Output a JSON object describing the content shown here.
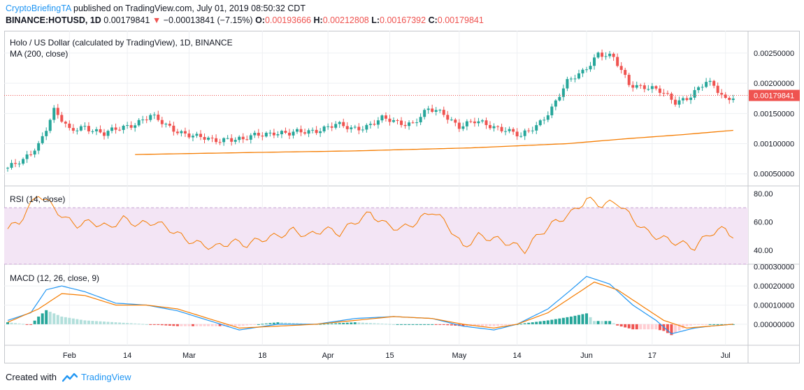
{
  "header": {
    "author": "CryptoBriefingTA",
    "published_text": "published on TradingView.com, July 01, 2019 08:50:32 CDT",
    "symbol": "BINANCE:HOTUSD, 1D",
    "last": "0.00179841",
    "change_arrow": "▼",
    "change": "−0.00013841 (−7.15%)",
    "o_label": "O:",
    "o_value": "0.00193666",
    "h_label": "H:",
    "h_value": "0.00212808",
    "l_label": "L:",
    "l_value": "0.00167392",
    "c_label": "C:",
    "c_value": "0.00179841"
  },
  "panes": {
    "price_title": "Holo / US Dollar (calculated by TradingView), 1D, BINANCE",
    "ma_label": "MA (200, close)",
    "rsi_label": "RSI (14, close)",
    "macd_label": "MACD (12, 26, close, 9)"
  },
  "footer": {
    "created_with": "Created with",
    "brand": "TradingView"
  },
  "colors": {
    "up": "#26a69a",
    "down": "#ef5350",
    "ma": "#f57c00",
    "rsi": "#f57c00",
    "macd": "#2196f3",
    "signal": "#f57c00",
    "rsi_band": "#f3e5f5",
    "last_price_tag": "#ef5350"
  },
  "chart_data": [
    {
      "type": "candlestick",
      "title": "Holo / US Dollar (calculated by TradingView), 1D, BINANCE",
      "x_ticks": [
        "Feb",
        "14",
        "Mar",
        "18",
        "Apr",
        "15",
        "May",
        "14",
        "Jun",
        "17",
        "Jul"
      ],
      "y_ticks": [
        "0.00050000",
        "0.00100000",
        "0.00150000",
        "0.00200000",
        "0.00250000"
      ],
      "ylim": [
        0.0003,
        0.0028
      ],
      "last_price": "0.00179841",
      "price_anchors": [
        [
          0,
          0.0006
        ],
        [
          4,
          0.0007
        ],
        [
          8,
          0.001
        ],
        [
          12,
          0.00155
        ],
        [
          16,
          0.0012
        ],
        [
          20,
          0.0013
        ],
        [
          25,
          0.00115
        ],
        [
          29,
          0.00125
        ],
        [
          33,
          0.00135
        ],
        [
          37,
          0.00145
        ],
        [
          41,
          0.0013
        ],
        [
          45,
          0.0012
        ],
        [
          49,
          0.0011
        ],
        [
          53,
          0.00105
        ],
        [
          57,
          0.0011
        ],
        [
          61,
          0.00105
        ],
        [
          65,
          0.00115
        ],
        [
          69,
          0.0012
        ],
        [
          73,
          0.00115
        ],
        [
          77,
          0.0012
        ],
        [
          81,
          0.00125
        ],
        [
          85,
          0.0013
        ],
        [
          89,
          0.00125
        ],
        [
          93,
          0.0013
        ],
        [
          97,
          0.0014
        ],
        [
          101,
          0.00135
        ],
        [
          105,
          0.00135
        ],
        [
          109,
          0.00155
        ],
        [
          113,
          0.0015
        ],
        [
          117,
          0.0013
        ],
        [
          121,
          0.00135
        ],
        [
          125,
          0.0013
        ],
        [
          129,
          0.00125
        ],
        [
          133,
          0.0011
        ],
        [
          137,
          0.0013
        ],
        [
          141,
          0.0016
        ],
        [
          145,
          0.002
        ],
        [
          149,
          0.0022
        ],
        [
          153,
          0.0025
        ],
        [
          157,
          0.0024
        ],
        [
          161,
          0.002
        ],
        [
          165,
          0.00195
        ],
        [
          169,
          0.00185
        ],
        [
          173,
          0.0017
        ],
        [
          177,
          0.0018
        ],
        [
          181,
          0.002
        ],
        [
          183,
          0.00195
        ],
        [
          186,
          0.00175
        ],
        [
          188,
          0.0018
        ]
      ],
      "ma": {
        "name": "MA (200, close)",
        "points": [
          [
            33,
            0.00082
          ],
          [
            60,
            0.00085
          ],
          [
            90,
            0.00088
          ],
          [
            120,
            0.00093
          ],
          [
            145,
            0.001
          ],
          [
            160,
            0.00108
          ],
          [
            175,
            0.00115
          ],
          [
            188,
            0.00122
          ]
        ]
      }
    },
    {
      "type": "line",
      "title": "RSI (14, close)",
      "y_ticks": [
        "40.00",
        "60.00",
        "80.00"
      ],
      "ylim": [
        30,
        85
      ],
      "band": [
        30,
        70
      ],
      "points": [
        [
          0,
          55
        ],
        [
          3,
          60
        ],
        [
          6,
          72
        ],
        [
          8,
          80
        ],
        [
          10,
          75
        ],
        [
          12,
          70
        ],
        [
          15,
          62
        ],
        [
          18,
          58
        ],
        [
          22,
          60
        ],
        [
          26,
          56
        ],
        [
          30,
          62
        ],
        [
          34,
          58
        ],
        [
          38,
          60
        ],
        [
          42,
          55
        ],
        [
          46,
          48
        ],
        [
          50,
          44
        ],
        [
          54,
          42
        ],
        [
          58,
          46
        ],
        [
          62,
          44
        ],
        [
          66,
          48
        ],
        [
          70,
          50
        ],
        [
          74,
          54
        ],
        [
          78,
          50
        ],
        [
          82,
          55
        ],
        [
          86,
          52
        ],
        [
          90,
          60
        ],
        [
          94,
          66
        ],
        [
          98,
          58
        ],
        [
          102,
          55
        ],
        [
          106,
          60
        ],
        [
          110,
          68
        ],
        [
          114,
          58
        ],
        [
          118,
          42
        ],
        [
          122,
          50
        ],
        [
          126,
          48
        ],
        [
          130,
          45
        ],
        [
          134,
          40
        ],
        [
          138,
          52
        ],
        [
          142,
          60
        ],
        [
          146,
          66
        ],
        [
          150,
          76
        ],
        [
          154,
          72
        ],
        [
          158,
          74
        ],
        [
          162,
          62
        ],
        [
          166,
          52
        ],
        [
          170,
          48
        ],
        [
          174,
          45
        ],
        [
          178,
          42
        ],
        [
          182,
          52
        ],
        [
          186,
          55
        ],
        [
          188,
          50
        ]
      ]
    },
    {
      "type": "line",
      "title": "MACD (12, 26, close, 9)",
      "y_ticks": [
        "0.00000000",
        "0.00010000",
        "0.00020000",
        "0.00030000"
      ],
      "ylim": [
        -0.00011,
        0.00031
      ],
      "series": [
        {
          "name": "MACD",
          "points": [
            [
              0,
              2e-05
            ],
            [
              6,
              6e-05
            ],
            [
              10,
              0.00018
            ],
            [
              14,
              0.0002
            ],
            [
              20,
              0.00017
            ],
            [
              28,
              0.00011
            ],
            [
              36,
              0.0001
            ],
            [
              44,
              7e-05
            ],
            [
              52,
              2e-05
            ],
            [
              60,
              -3e-05
            ],
            [
              70,
              0.0
            ],
            [
              80,
              0.0
            ],
            [
              90,
              3e-05
            ],
            [
              100,
              4e-05
            ],
            [
              110,
              3e-05
            ],
            [
              118,
              -1e-05
            ],
            [
              126,
              -3e-05
            ],
            [
              132,
              0.0
            ],
            [
              140,
              8e-05
            ],
            [
              146,
              0.00018
            ],
            [
              150,
              0.00025
            ],
            [
              156,
              0.00021
            ],
            [
              162,
              0.0001
            ],
            [
              168,
              2e-05
            ],
            [
              172,
              -5e-05
            ],
            [
              178,
              -2e-05
            ],
            [
              182,
              -1e-05
            ],
            [
              188,
              0.0
            ]
          ]
        },
        {
          "name": "Signal",
          "points": [
            [
              0,
              1e-05
            ],
            [
              8,
              8e-05
            ],
            [
              14,
              0.00016
            ],
            [
              20,
              0.00015
            ],
            [
              28,
              0.0001
            ],
            [
              36,
              0.0001
            ],
            [
              44,
              8e-05
            ],
            [
              52,
              3e-05
            ],
            [
              60,
              -2e-05
            ],
            [
              70,
              -1e-05
            ],
            [
              80,
              0.0
            ],
            [
              90,
              2e-05
            ],
            [
              100,
              4e-05
            ],
            [
              110,
              3e-05
            ],
            [
              118,
              0.0
            ],
            [
              126,
              -2e-05
            ],
            [
              132,
              0.0
            ],
            [
              140,
              6e-05
            ],
            [
              146,
              0.00014
            ],
            [
              152,
              0.00022
            ],
            [
              158,
              0.00018
            ],
            [
              164,
              0.0001
            ],
            [
              170,
              2e-05
            ],
            [
              176,
              -2e-05
            ],
            [
              182,
              -1e-05
            ],
            [
              188,
              0.0
            ]
          ]
        }
      ]
    }
  ]
}
